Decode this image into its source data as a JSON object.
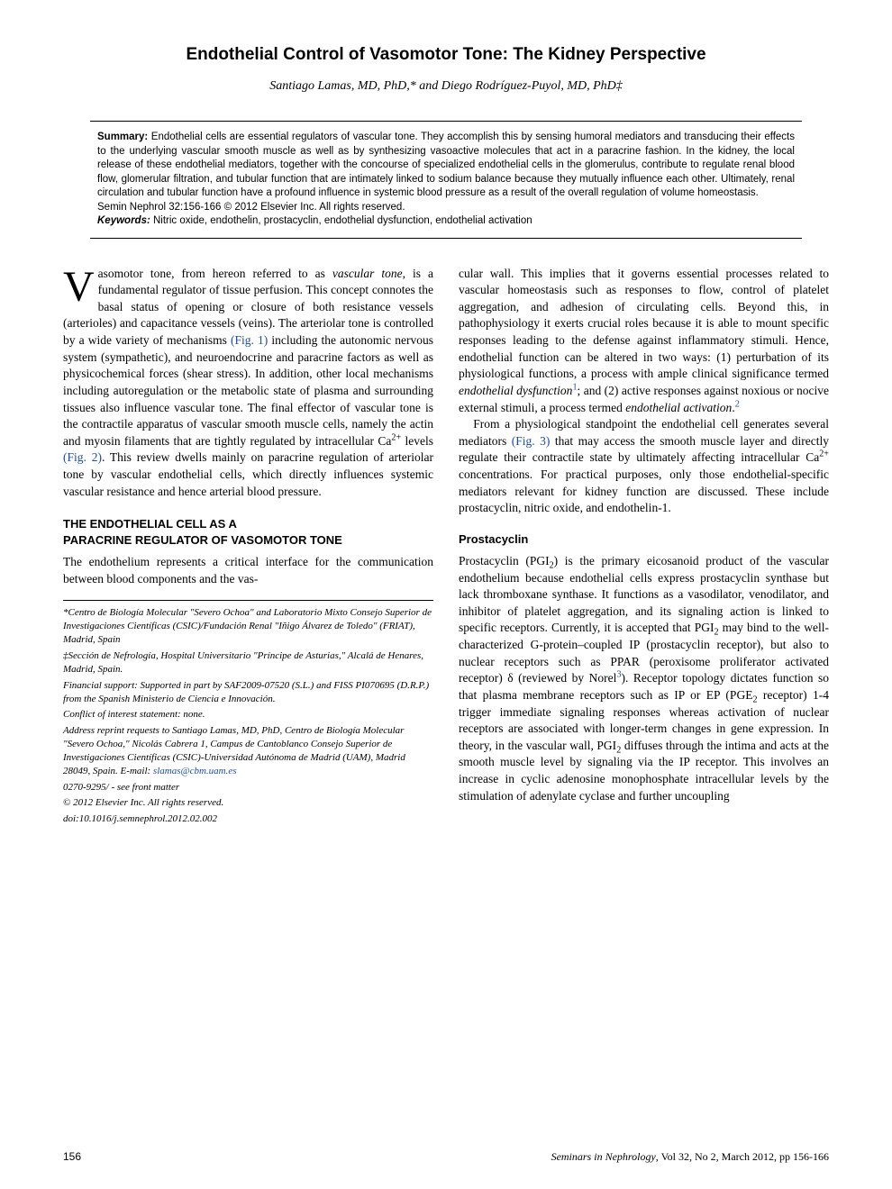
{
  "title": "Endothelial Control of Vasomotor Tone: The Kidney Perspective",
  "authors": "Santiago Lamas, MD, PhD,* and Diego Rodríguez-Puyol, MD, PhD‡",
  "summary": {
    "label": "Summary:",
    "text": " Endothelial cells are essential regulators of vascular tone. They accomplish this by sensing humoral mediators and transducing their effects to the underlying vascular smooth muscle as well as by synthesizing vasoactive molecules that act in a paracrine fashion. In the kidney, the local release of these endothelial mediators, together with the concourse of specialized endothelial cells in the glomerulus, contribute to regulate renal blood flow, glomerular filtration, and tubular function that are intimately linked to sodium balance because they mutually influence each other. Ultimately, renal circulation and tubular function have a profound influence in systemic blood pressure as a result of the overall regulation of volume homeostasis.",
    "citation": "Semin Nephrol 32:156-166 © 2012 Elsevier Inc. All rights reserved.",
    "keywords_label": "Keywords:",
    "keywords": " Nitric oxide, endothelin, prostacyclin, endothelial dysfunction, endothelial activation"
  },
  "body": {
    "dropcap": "V",
    "intro_rest": "asomotor tone, from hereon referred to as ",
    "intro_italic": "vascular tone",
    "intro_cont": ", is a fundamental regulator of tissue perfusion. This concept connotes the basal status of opening or closure of both resistance vessels (arterioles) and capacitance vessels (veins). The arteriolar tone is controlled by a wide variety of mechanisms ",
    "fig1": "(Fig. 1)",
    "intro_cont2": " including the autonomic nervous system (sympathetic), and neuroendocrine and paracrine factors as well as physicochemical forces (shear stress). In addition, other local mechanisms including autoregulation or the metabolic state of plasma and surrounding tissues also influence vascular tone. The final effector of vascular tone is the contractile apparatus of vascular smooth muscle cells, namely the actin and myosin filaments that are tightly regulated by intracellular Ca",
    "sup2plus": "2+",
    "intro_cont3": " levels ",
    "fig2": "(Fig. 2)",
    "intro_cont4": ". This review dwells mainly on paracrine regulation of arteriolar tone by vascular endothelial cells, which directly influences systemic vascular resistance and hence arterial blood pressure.",
    "sec1_heading_l1": "THE ENDOTHELIAL CELL AS A",
    "sec1_heading_l2": "PARACRINE REGULATOR OF VASOMOTOR TONE",
    "sec1_p1": "The endothelium represents a critical interface for the communication between blood components and the vas-",
    "col2_p1a": "cular wall. This implies that it governs essential processes related to vascular homeostasis such as responses to flow, control of platelet aggregation, and adhesion of circulating cells. Beyond this, in pathophysiology it exerts crucial roles because it is able to mount specific responses leading to the defense against inflammatory stimuli. Hence, endothelial function can be altered in two ways: (1) perturbation of its physiological functions, a process with ample clinical significance termed ",
    "col2_p1_i1": "endothelial dysfunction",
    "ref1": "1",
    "col2_p1b": "; and (2) active responses against noxious or nocive external stimuli, a process termed ",
    "col2_p1_i2": "endothelial activation",
    "col2_p1c": ".",
    "ref2": "2",
    "col2_p2a": "From a physiological standpoint the endothelial cell generates several mediators ",
    "fig3": "(Fig. 3)",
    "col2_p2b": " that may access the smooth muscle layer and directly regulate their contractile state by ultimately affecting intracellular Ca",
    "col2_p2c": " concentrations. For practical purposes, only those endothelial-specific mediators relevant for kidney function are discussed. These include prostacyclin, nitric oxide, and endothelin-1.",
    "subsec_heading": "Prostacyclin",
    "prost_p1a": "Prostacyclin (PGI",
    "sub2": "2",
    "prost_p1b": ") is the primary eicosanoid product of the vascular endothelium because endothelial cells express prostacyclin synthase but lack thromboxane synthase. It functions as a vasodilator, venodilator, and inhibitor of platelet aggregation, and its signaling action is linked to specific receptors. Currently, it is accepted that PGI",
    "prost_p1c": " may bind to the well-characterized G-protein–coupled IP (prostacyclin receptor), but also to nuclear receptors such as PPAR (peroxisome proliferator activated receptor) δ (reviewed by Norel",
    "ref3": "3",
    "prost_p1d": "). Receptor topology dictates function so that plasma membrane receptors such as IP or EP (PGE",
    "prost_p1e": " receptor) 1-4 trigger immediate signaling responses whereas activation of nuclear receptors are associated with longer-term changes in gene expression. In theory, in the vascular wall, PGI",
    "prost_p1f": " diffuses through the intima and acts at the smooth muscle level by signaling via the IP receptor. This involves an increase in cyclic adenosine monophosphate intracellular levels by the stimulation of adenylate cyclase and further uncoupling"
  },
  "footnotes": {
    "aff1": "*Centro de Biología Molecular \"Severo Ochoa\" and Laboratorio Mixto Consejo Superior de Investigaciones Científicas (CSIC)/Fundación Renal \"Iñigo Álvarez de Toledo\" (FRIAT), Madrid, Spain",
    "aff2": "‡Sección de Nefrología, Hospital Universitario \"Príncipe de Asturias,\" Alcalá de Henares, Madrid, Spain.",
    "funding": "Financial support: Supported in part by SAF2009-07520 (S.L.) and FISS PI070695 (D.R.P.) from the Spanish Ministerio de Ciencia e Innovación.",
    "conflict": "Conflict of interest statement: none.",
    "address": "Address reprint requests to Santiago Lamas, MD, PhD, Centro de Biología Molecular \"Severo Ochoa,\" Nicolás Cabrera 1, Campus de Cantoblanco Consejo Superior de Investigaciones Científicas (CSIC)-Universidad Autónoma de Madrid (UAM), Madrid 28049, Spain. E-mail: ",
    "email": "slamas@cbm.uam.es",
    "issn": "0270-9295/ - see front matter",
    "copyright": "© 2012 Elsevier Inc. All rights reserved.",
    "doi": "doi:10.1016/j.semnephrol.2012.02.002"
  },
  "footer": {
    "page": "156",
    "journal": "Seminars in Nephrology",
    "issue": ", Vol 32, No 2, March 2012, pp 156-166"
  },
  "colors": {
    "link": "#1a4bb5",
    "text": "#000000",
    "bg": "#ffffff"
  }
}
